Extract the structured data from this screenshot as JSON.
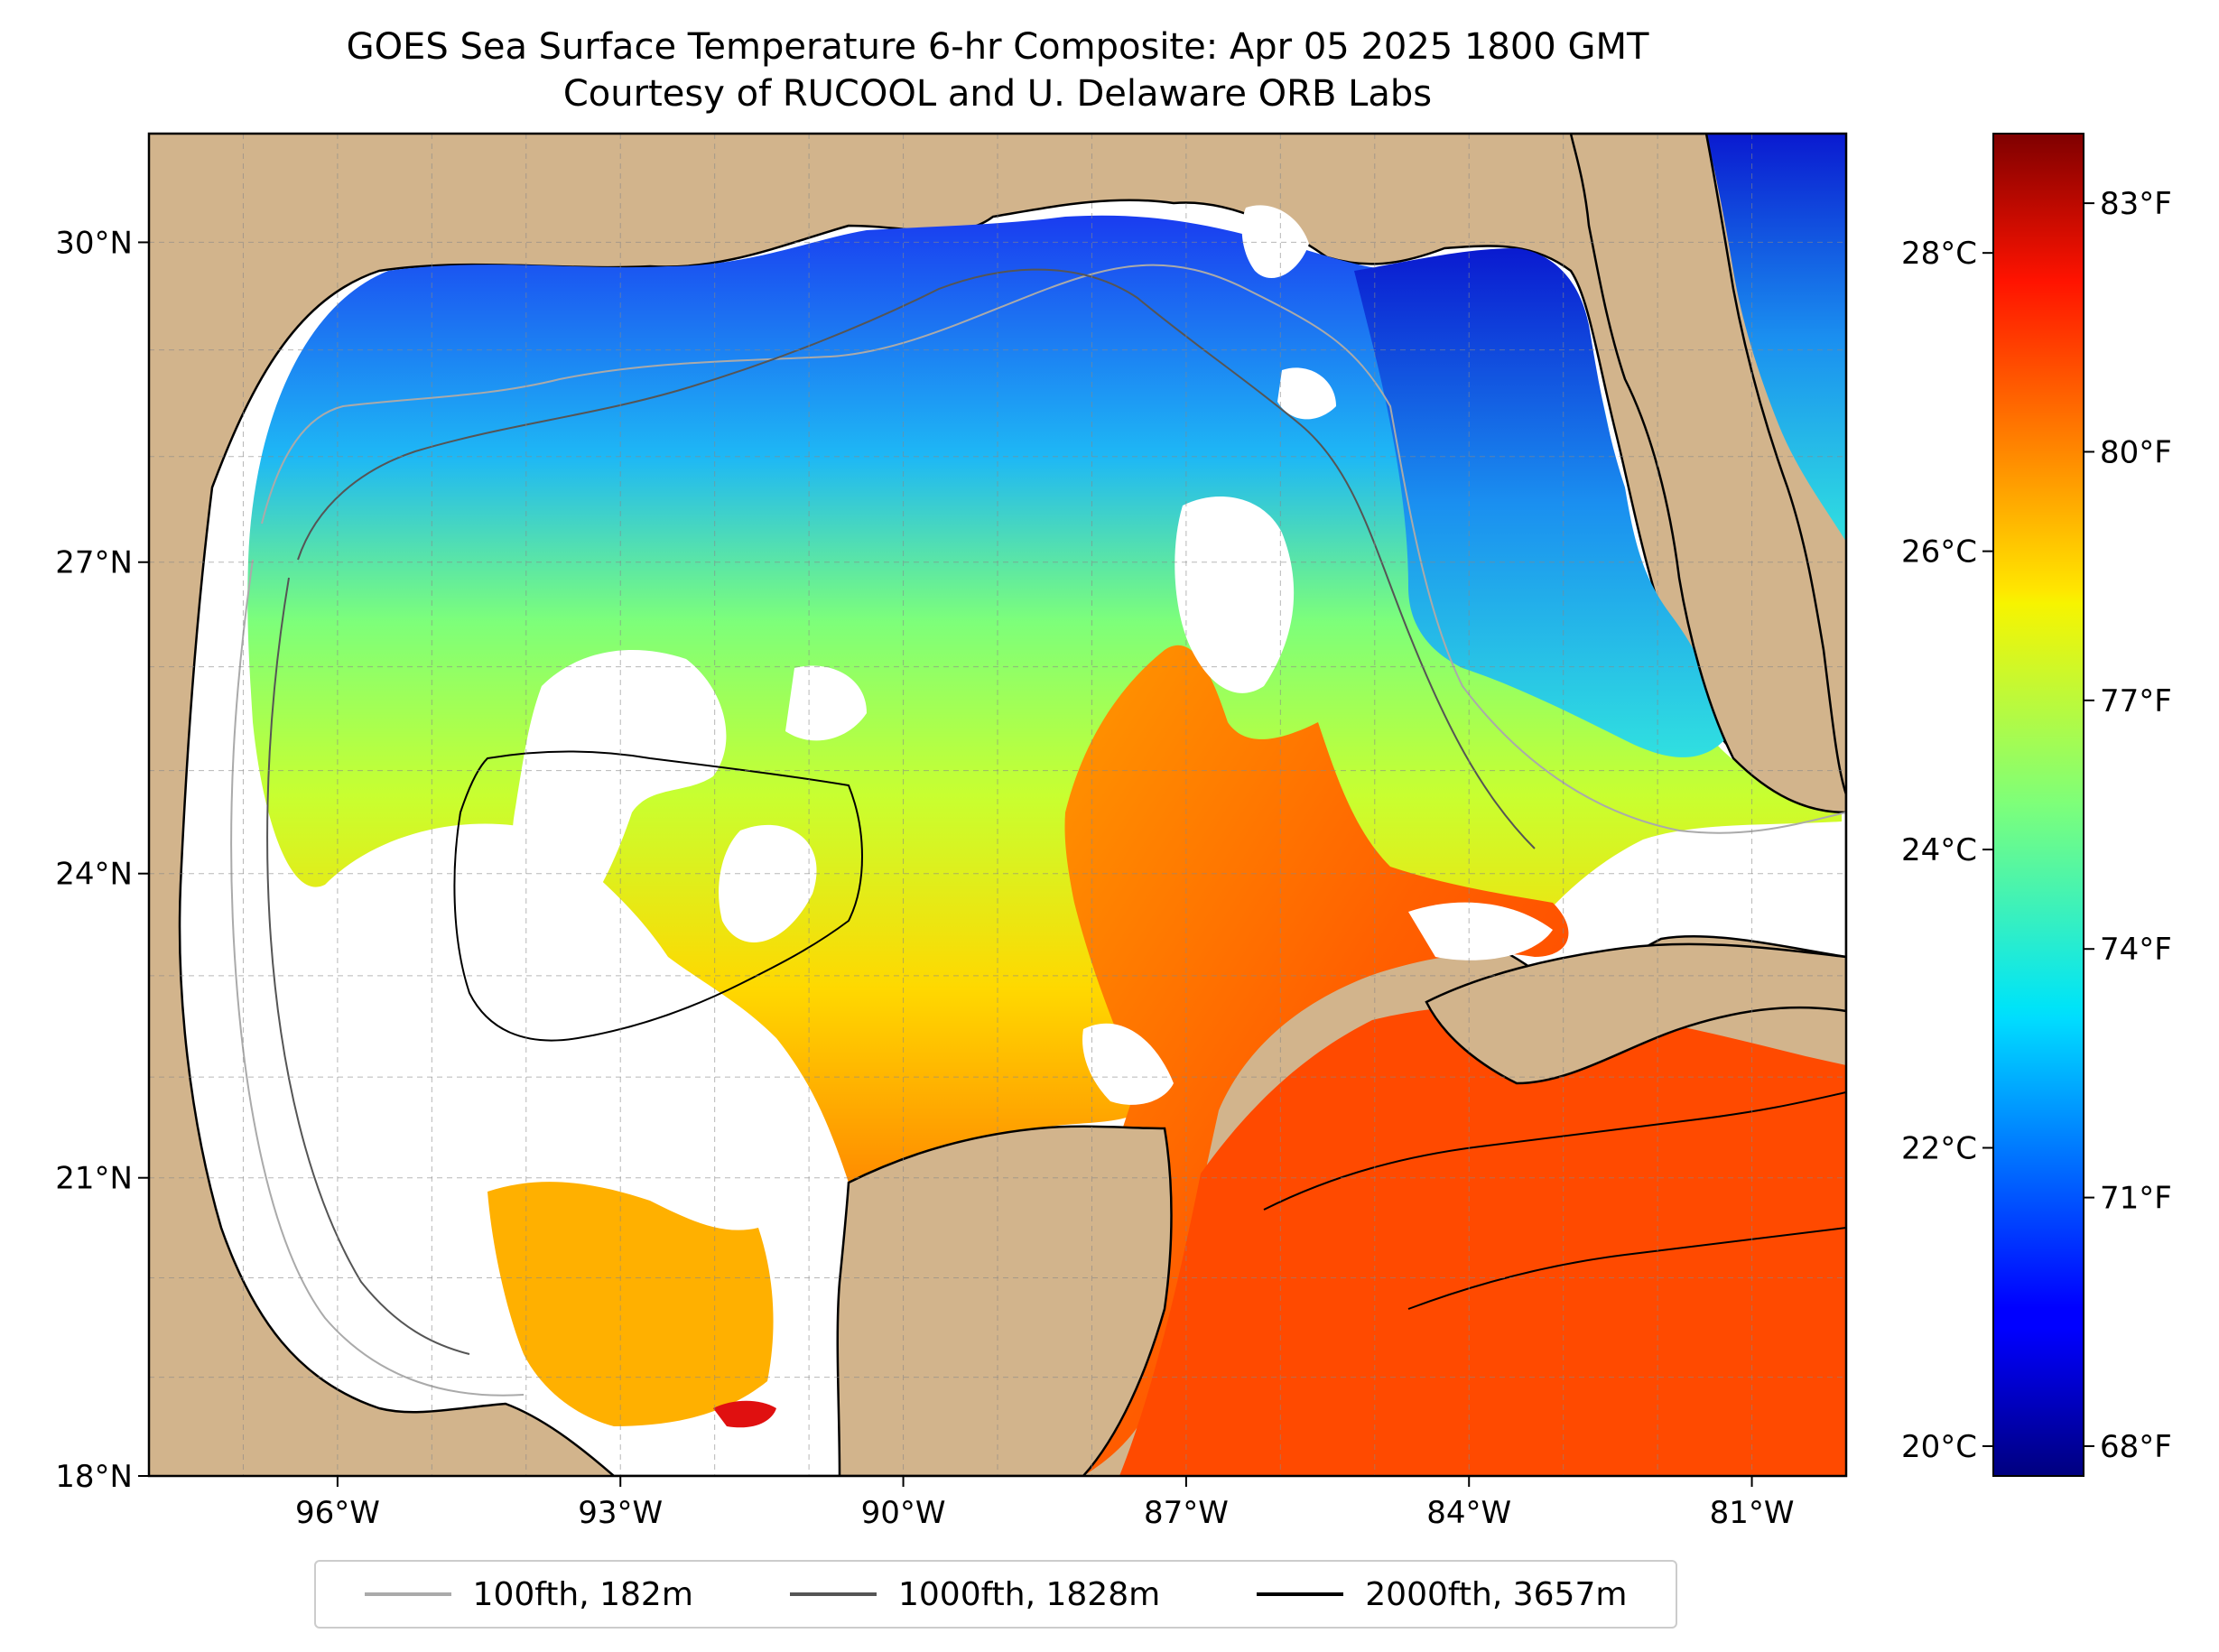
{
  "title": "GOES Sea Surface Temperature 6-hr Composite: Apr 05 2025 1800 GMT",
  "subtitle": "Courtesy of RUCOOL and U. Delaware ORB Labs",
  "map": {
    "extent": {
      "lon_min": -98,
      "lon_max": -80,
      "lat_min": 18,
      "lat_max": 31
    },
    "land_color": "#d2b48c",
    "lat_ticks": [
      {
        "value": 30,
        "label": "30°N"
      },
      {
        "value": 27,
        "label": "27°N"
      },
      {
        "value": 24,
        "label": "24°N"
      },
      {
        "value": 21,
        "label": "21°N"
      },
      {
        "value": 18,
        "label": "18°N"
      }
    ],
    "lon_ticks": [
      {
        "value": -96,
        "label": "96°W"
      },
      {
        "value": -93,
        "label": "93°W"
      },
      {
        "value": -90,
        "label": "90°W"
      },
      {
        "value": -87,
        "label": "87°W"
      },
      {
        "value": -84,
        "label": "84°W"
      },
      {
        "value": -81,
        "label": "81°W"
      }
    ]
  },
  "colorbar": {
    "colormap": "jet",
    "celsius_range": [
      19.8,
      28.8
    ],
    "celsius_ticks": [
      {
        "value": 28,
        "label": "28°C"
      },
      {
        "value": 26,
        "label": "26°C"
      },
      {
        "value": 24,
        "label": "24°C"
      },
      {
        "value": 22,
        "label": "22°C"
      },
      {
        "value": 20,
        "label": "20°C"
      }
    ],
    "fahrenheit_ticks": [
      {
        "value": 83,
        "label": "83°F"
      },
      {
        "value": 80,
        "label": "80°F"
      },
      {
        "value": 77,
        "label": "77°F"
      },
      {
        "value": 74,
        "label": "74°F"
      },
      {
        "value": 71,
        "label": "71°F"
      },
      {
        "value": 68,
        "label": "68°F"
      }
    ]
  },
  "legend": [
    {
      "label": "100fth, 182m",
      "color": "#aaaaaa"
    },
    {
      "label": "1000fth, 1828m",
      "color": "#555555"
    },
    {
      "label": "2000fth, 3657m",
      "color": "#000000"
    }
  ]
}
